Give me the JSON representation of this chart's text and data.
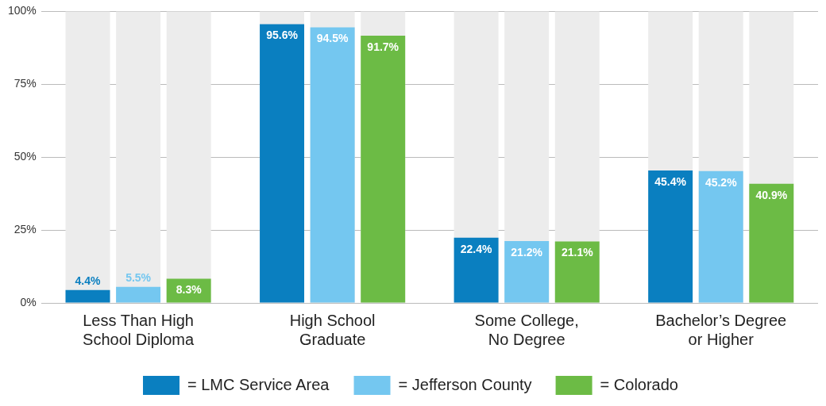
{
  "chart_data": {
    "type": "bar",
    "categories": [
      "Less Than High\nSchool Diploma",
      "High School\nGraduate",
      "Some College,\nNo Degree",
      "Bachelor’s Degree\nor Higher"
    ],
    "series": [
      {
        "name": "= LMC Service Area",
        "color": "#0a7fc0",
        "values": [
          4.4,
          95.6,
          22.4,
          45.4
        ],
        "value_labels": [
          "4.4%",
          "95.6%",
          "22.4%",
          "45.4%"
        ]
      },
      {
        "name": "= Jefferson County",
        "color": "#74c7f0",
        "values": [
          5.5,
          94.5,
          21.2,
          45.2
        ],
        "value_labels": [
          "5.5%",
          "94.5%",
          "21.2%",
          "45.2%"
        ]
      },
      {
        "name": "= Colorado",
        "color": "#6cbb45",
        "values": [
          8.3,
          91.7,
          21.1,
          40.9
        ],
        "value_labels": [
          "8.3%",
          "91.7%",
          "21.1%",
          "40.9%"
        ]
      }
    ],
    "ylim": [
      0,
      100
    ],
    "yticks": [
      {
        "value": 0,
        "label": "0%"
      },
      {
        "value": 25,
        "label": "25%"
      },
      {
        "value": 50,
        "label": "50%"
      },
      {
        "value": 75,
        "label": "75%"
      },
      {
        "value": 100,
        "label": "100%"
      }
    ],
    "grid": "y",
    "legend": "bottom"
  }
}
